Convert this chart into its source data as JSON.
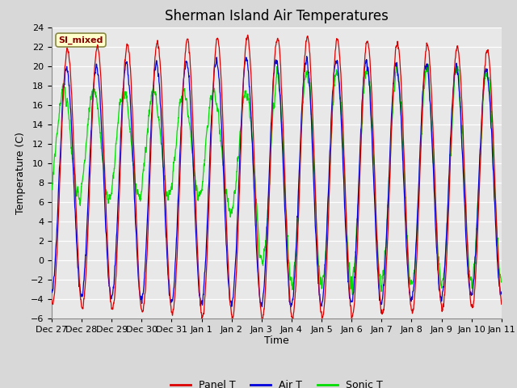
{
  "title": "Sherman Island Air Temperatures",
  "xlabel": "Time",
  "ylabel": "Temperature (C)",
  "ylim": [
    -6,
    24
  ],
  "yticks": [
    -6,
    -4,
    -2,
    0,
    2,
    4,
    6,
    8,
    10,
    12,
    14,
    16,
    18,
    20,
    22,
    24
  ],
  "x_tick_labels": [
    "Dec 27",
    "Dec 28",
    "Dec 29",
    "Dec 30",
    "Dec 31",
    "Jan 1",
    "Jan 2",
    "Jan 3",
    "Jan 4",
    "Jan 5",
    "Jan 6",
    "Jan 7",
    "Jan 8",
    "Jan 9",
    "Jan 10",
    "Jan 11"
  ],
  "background_color": "#d8d8d8",
  "plot_bg_color": "#e8e8e8",
  "panel_color": "#dd0000",
  "air_color": "#0000dd",
  "sonic_color": "#00dd00",
  "legend_label": "SI_mixed",
  "legend_bg": "#ffffcc",
  "legend_text_color": "#880000",
  "title_fontsize": 12,
  "label_fontsize": 9,
  "tick_fontsize": 8,
  "num_days": 15,
  "total_points": 2160
}
